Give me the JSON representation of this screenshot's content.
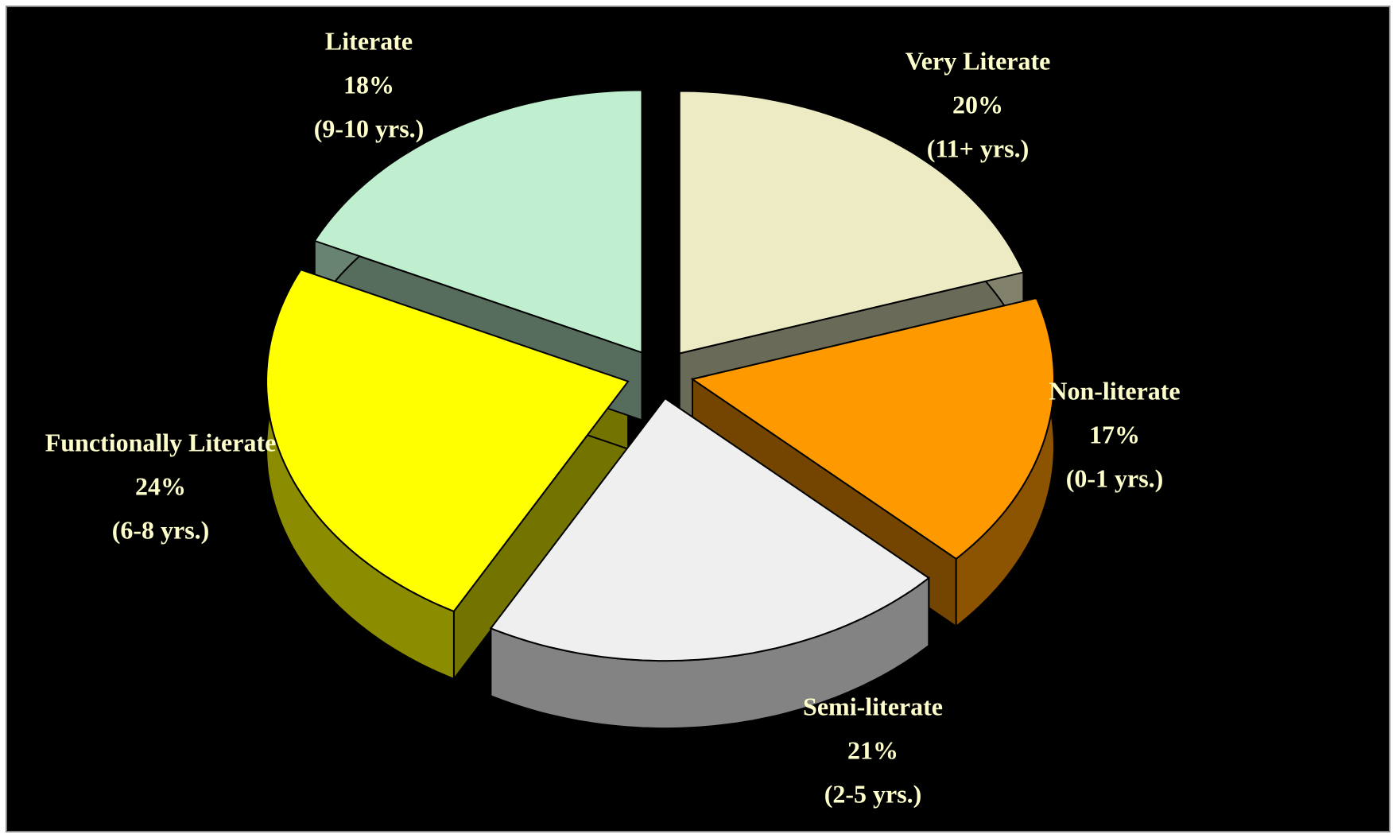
{
  "chart_data": {
    "type": "pie",
    "categories": [
      "Very Literate",
      "Non-literate",
      "Semi-literate",
      "Functionally Literate",
      "Literate"
    ],
    "values": [
      20,
      17,
      21,
      24,
      18
    ],
    "value_labels": [
      "20%",
      "17%",
      "21%",
      "24%",
      "18%"
    ],
    "years": [
      "(11+ yrs.)",
      "(0-1 yrs.)",
      "(2-5 yrs.)",
      "(6-8 yrs.)",
      "(9-10 yrs.)"
    ],
    "colors": [
      "#ecebc4",
      "#ff9900",
      "#efefef",
      "#ffff00",
      "#bfefcf"
    ]
  }
}
